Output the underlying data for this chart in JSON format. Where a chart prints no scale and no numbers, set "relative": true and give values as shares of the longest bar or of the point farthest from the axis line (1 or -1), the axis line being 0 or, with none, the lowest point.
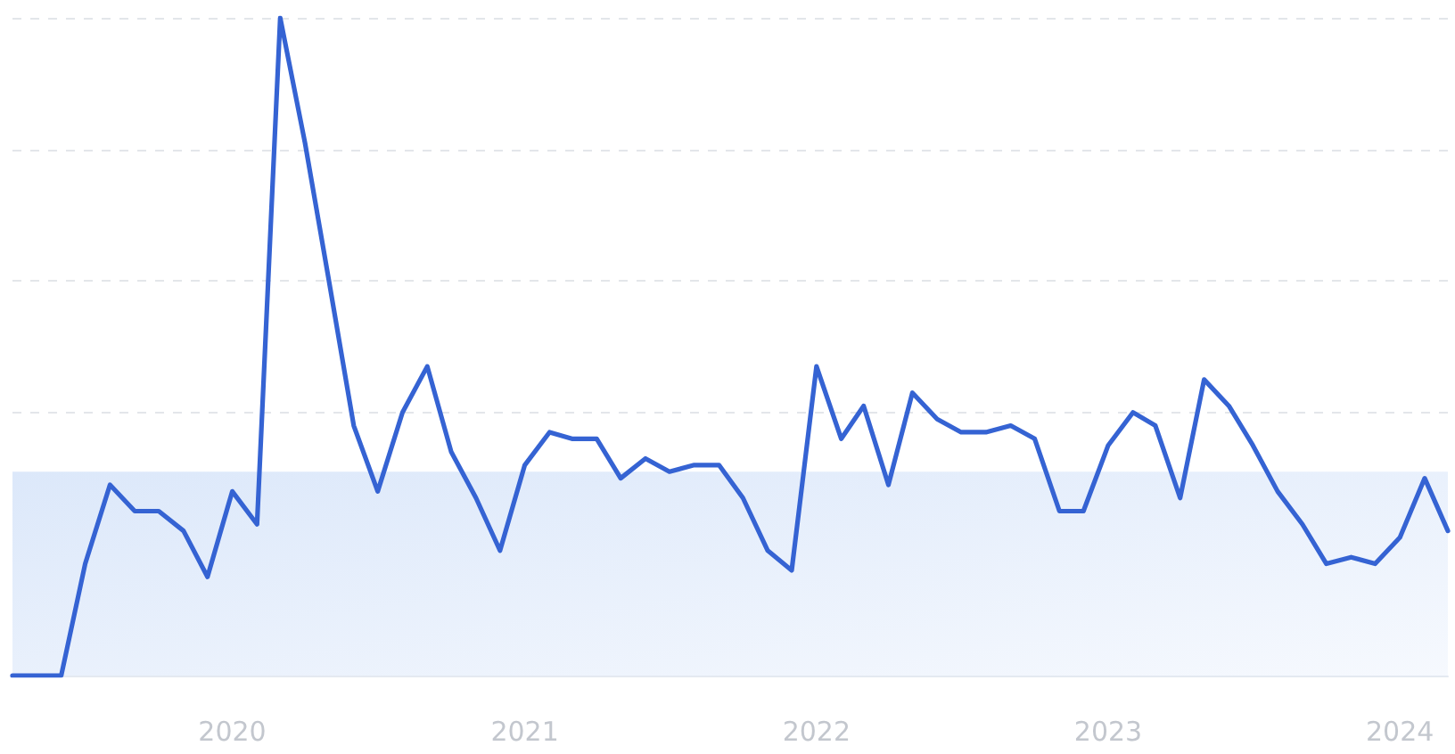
{
  "chart_data": {
    "type": "line",
    "relative": true,
    "x": [
      "2019-04",
      "2019-05",
      "2019-06",
      "2019-07",
      "2019-08",
      "2019-09",
      "2019-10",
      "2019-11",
      "2019-12",
      "2020-01",
      "2020-02",
      "2020-03",
      "2020-04",
      "2020-05",
      "2020-06",
      "2020-07",
      "2020-08",
      "2020-09",
      "2020-10",
      "2020-11",
      "2020-12",
      "2021-01",
      "2021-02",
      "2021-03",
      "2021-04",
      "2021-05",
      "2021-06",
      "2021-07",
      "2021-08",
      "2021-09",
      "2021-10",
      "2021-11",
      "2021-12",
      "2022-01",
      "2022-02",
      "2022-03",
      "2022-04",
      "2022-05",
      "2022-06",
      "2022-07",
      "2022-08",
      "2022-09",
      "2022-10",
      "2022-11",
      "2022-12",
      "2023-01",
      "2023-02",
      "2023-03",
      "2023-04",
      "2023-05",
      "2023-06",
      "2023-07",
      "2023-08",
      "2023-09",
      "2023-10",
      "2023-11",
      "2023-12",
      "2024-01",
      "2024-02",
      "2024-03"
    ],
    "series": [
      {
        "color": "#3563d3",
        "values": [
          0,
          0,
          0,
          0.17,
          0.29,
          0.25,
          0.25,
          0.22,
          0.15,
          0.28,
          0.23,
          1,
          0.81,
          0.6,
          0.38,
          0.28,
          0.4,
          0.47,
          0.34,
          0.27,
          0.19,
          0.32,
          0.37,
          0.36,
          0.36,
          0.3,
          0.33,
          0.31,
          0.32,
          0.32,
          0.27,
          0.19,
          0.16,
          0.47,
          0.36,
          0.41,
          0.29,
          0.43,
          0.39,
          0.37,
          0.37,
          0.38,
          0.36,
          0.25,
          0.25,
          0.35,
          0.4,
          0.38,
          0.27,
          0.45,
          0.41,
          0.35,
          0.28,
          0.23,
          0.17,
          0.18,
          0.17,
          0.21,
          0.3,
          0.22
        ]
      }
    ],
    "xlim": [
      "2019-04",
      "2024-03"
    ],
    "xticks": [
      "2020",
      "2021",
      "2022",
      "2023",
      "2024"
    ],
    "bands": [
      {
        "axis": "y",
        "from": 0,
        "to": 0.31,
        "color": "#dce8fa"
      }
    ],
    "grid": "y",
    "marker": "none",
    "line_style": "solid"
  }
}
